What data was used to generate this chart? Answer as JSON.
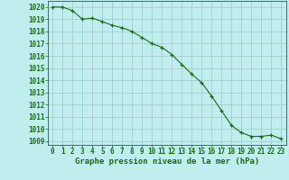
{
  "x": [
    0,
    1,
    2,
    3,
    4,
    5,
    6,
    7,
    8,
    9,
    10,
    11,
    12,
    13,
    14,
    15,
    16,
    17,
    18,
    19,
    20,
    21,
    22,
    23
  ],
  "y": [
    1020.0,
    1020.0,
    1019.7,
    1019.0,
    1019.1,
    1018.8,
    1018.5,
    1018.3,
    1018.0,
    1017.5,
    1017.0,
    1016.7,
    1016.1,
    1015.3,
    1014.5,
    1013.8,
    1012.7,
    1011.5,
    1010.3,
    1009.7,
    1009.4,
    1009.4,
    1009.5,
    1009.2
  ],
  "line_color": "#1a6b1a",
  "marker_color": "#1a6b1a",
  "bg_color": "#c0eded",
  "grid_color": "#9bbcbc",
  "ylabel_ticks": [
    1009,
    1010,
    1011,
    1012,
    1013,
    1014,
    1015,
    1016,
    1017,
    1018,
    1019,
    1020
  ],
  "ylim": [
    1008.7,
    1020.5
  ],
  "xlim": [
    -0.5,
    23.5
  ],
  "xlabel": "Graphe pression niveau de la mer (hPa)",
  "xlabel_fontsize": 6.5,
  "tick_fontsize": 5.5,
  "title": ""
}
